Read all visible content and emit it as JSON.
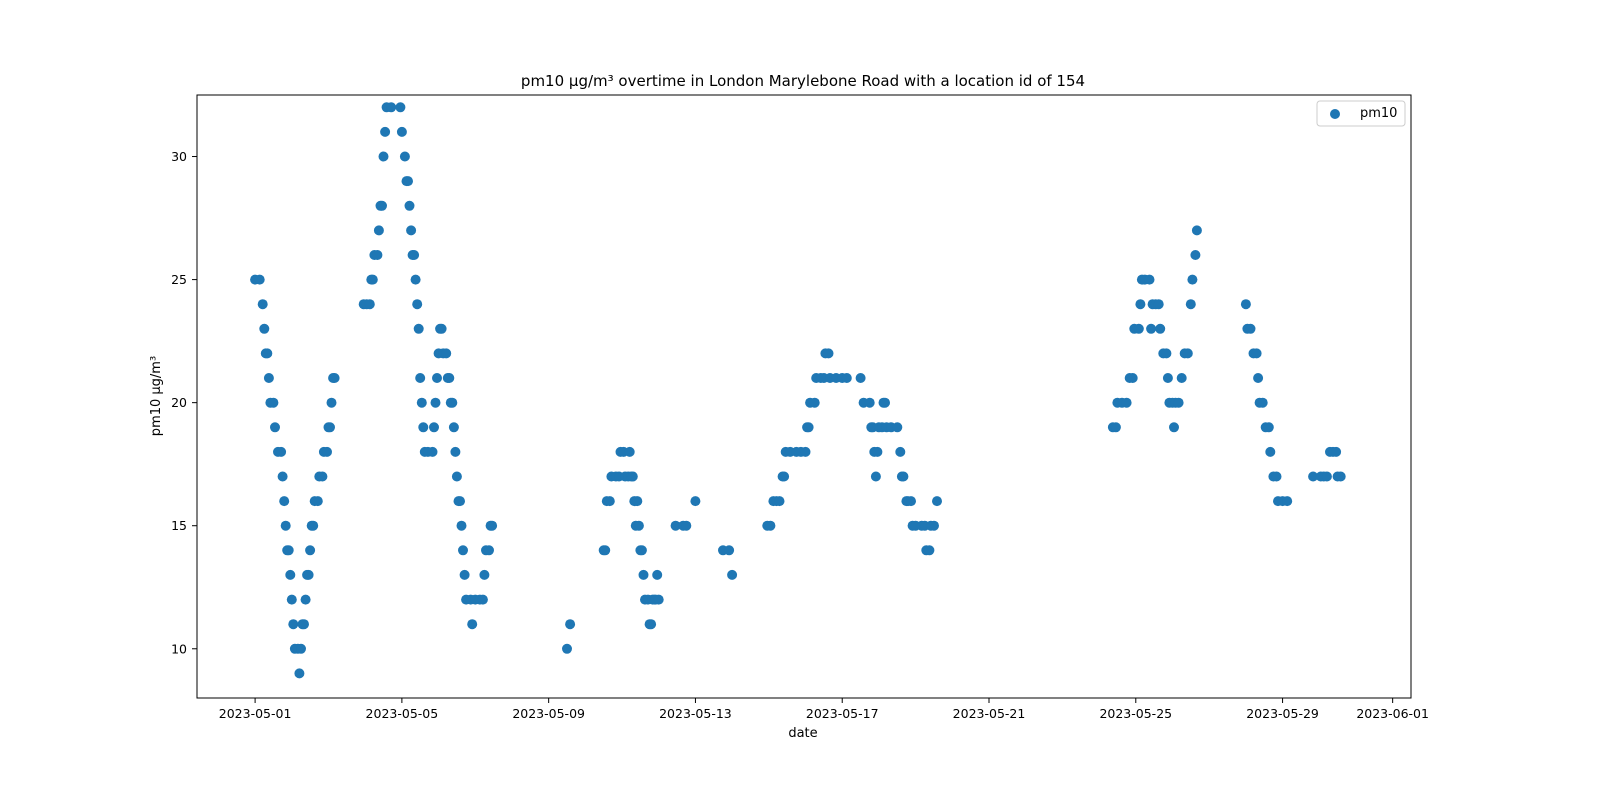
{
  "chart_data": {
    "type": "scatter",
    "title": "pm10 µg/m³ overtime in London Marylebone Road with a location id of 154",
    "xlabel": "date",
    "ylabel": "pm10 µg/m³",
    "x_ticks": [
      "2023-05-01",
      "2023-05-05",
      "2023-05-09",
      "2023-05-13",
      "2023-05-17",
      "2023-05-21",
      "2023-05-25",
      "2023-05-29",
      "2023-06-01"
    ],
    "y_ticks": [
      10,
      15,
      20,
      25,
      30
    ],
    "xlim": [
      "2023-04-29 10:00",
      "2023-06-01 12:00"
    ],
    "ylim": [
      8,
      32.5
    ],
    "grid": false,
    "legend_position": "top-right",
    "marker_color": "#1f77b4",
    "series": [
      {
        "name": "pm10",
        "points": [
          [
            "2023-05-01 00:00",
            25
          ],
          [
            "2023-05-01 03:00",
            25
          ],
          [
            "2023-05-01 05:00",
            24
          ],
          [
            "2023-05-01 06:00",
            23
          ],
          [
            "2023-05-01 07:00",
            22
          ],
          [
            "2023-05-01 08:00",
            22
          ],
          [
            "2023-05-01 09:00",
            21
          ],
          [
            "2023-05-01 10:00",
            20
          ],
          [
            "2023-05-01 12:00",
            20
          ],
          [
            "2023-05-01 13:00",
            19
          ],
          [
            "2023-05-01 15:00",
            18
          ],
          [
            "2023-05-01 17:00",
            18
          ],
          [
            "2023-05-01 18:00",
            17
          ],
          [
            "2023-05-01 19:00",
            16
          ],
          [
            "2023-05-01 20:00",
            15
          ],
          [
            "2023-05-01 21:00",
            14
          ],
          [
            "2023-05-01 22:00",
            14
          ],
          [
            "2023-05-01 23:00",
            13
          ],
          [
            "2023-05-02 00:00",
            12
          ],
          [
            "2023-05-02 01:00",
            11
          ],
          [
            "2023-05-02 02:00",
            10
          ],
          [
            "2023-05-02 04:00",
            10
          ],
          [
            "2023-05-02 05:00",
            9
          ],
          [
            "2023-05-02 06:00",
            10
          ],
          [
            "2023-05-02 07:00",
            11
          ],
          [
            "2023-05-02 08:00",
            11
          ],
          [
            "2023-05-02 09:00",
            12
          ],
          [
            "2023-05-02 10:00",
            13
          ],
          [
            "2023-05-02 11:00",
            13
          ],
          [
            "2023-05-02 12:00",
            14
          ],
          [
            "2023-05-02 13:00",
            15
          ],
          [
            "2023-05-02 14:00",
            15
          ],
          [
            "2023-05-02 15:00",
            16
          ],
          [
            "2023-05-02 17:00",
            16
          ],
          [
            "2023-05-02 18:00",
            17
          ],
          [
            "2023-05-02 20:00",
            17
          ],
          [
            "2023-05-02 21:00",
            18
          ],
          [
            "2023-05-02 23:00",
            18
          ],
          [
            "2023-05-03 00:00",
            19
          ],
          [
            "2023-05-03 01:00",
            19
          ],
          [
            "2023-05-03 02:00",
            20
          ],
          [
            "2023-05-03 03:00",
            21
          ],
          [
            "2023-05-03 04:00",
            21
          ],
          [
            "2023-05-03 23:00",
            24
          ],
          [
            "2023-05-04 01:00",
            24
          ],
          [
            "2023-05-04 03:00",
            24
          ],
          [
            "2023-05-04 04:00",
            25
          ],
          [
            "2023-05-04 05:00",
            25
          ],
          [
            "2023-05-04 06:00",
            26
          ],
          [
            "2023-05-04 08:00",
            26
          ],
          [
            "2023-05-04 09:00",
            27
          ],
          [
            "2023-05-04 10:00",
            28
          ],
          [
            "2023-05-04 11:00",
            28
          ],
          [
            "2023-05-04 12:00",
            30
          ],
          [
            "2023-05-04 13:00",
            31
          ],
          [
            "2023-05-04 14:00",
            32
          ],
          [
            "2023-05-04 17:00",
            32
          ],
          [
            "2023-05-04 23:00",
            32
          ],
          [
            "2023-05-05 00:00",
            31
          ],
          [
            "2023-05-05 02:00",
            30
          ],
          [
            "2023-05-05 03:00",
            29
          ],
          [
            "2023-05-05 04:00",
            29
          ],
          [
            "2023-05-05 05:00",
            28
          ],
          [
            "2023-05-05 06:00",
            27
          ],
          [
            "2023-05-05 07:00",
            26
          ],
          [
            "2023-05-05 08:00",
            26
          ],
          [
            "2023-05-05 09:00",
            25
          ],
          [
            "2023-05-05 10:00",
            24
          ],
          [
            "2023-05-05 11:00",
            23
          ],
          [
            "2023-05-05 12:00",
            21
          ],
          [
            "2023-05-05 13:00",
            20
          ],
          [
            "2023-05-05 14:00",
            19
          ],
          [
            "2023-05-05 15:00",
            18
          ],
          [
            "2023-05-05 17:00",
            18
          ],
          [
            "2023-05-05 20:00",
            18
          ],
          [
            "2023-05-05 21:00",
            19
          ],
          [
            "2023-05-05 22:00",
            20
          ],
          [
            "2023-05-05 23:00",
            21
          ],
          [
            "2023-05-06 00:00",
            22
          ],
          [
            "2023-05-06 01:00",
            23
          ],
          [
            "2023-05-06 02:00",
            23
          ],
          [
            "2023-05-06 03:00",
            22
          ],
          [
            "2023-05-06 05:00",
            22
          ],
          [
            "2023-05-06 06:00",
            21
          ],
          [
            "2023-05-06 07:00",
            21
          ],
          [
            "2023-05-06 08:00",
            20
          ],
          [
            "2023-05-06 09:00",
            20
          ],
          [
            "2023-05-06 10:00",
            19
          ],
          [
            "2023-05-06 11:00",
            18
          ],
          [
            "2023-05-06 12:00",
            17
          ],
          [
            "2023-05-06 13:00",
            16
          ],
          [
            "2023-05-06 14:00",
            16
          ],
          [
            "2023-05-06 15:00",
            15
          ],
          [
            "2023-05-06 16:00",
            14
          ],
          [
            "2023-05-06 17:00",
            13
          ],
          [
            "2023-05-06 18:00",
            12
          ],
          [
            "2023-05-06 21:00",
            12
          ],
          [
            "2023-05-06 22:00",
            11
          ],
          [
            "2023-05-07 00:00",
            12
          ],
          [
            "2023-05-07 03:00",
            12
          ],
          [
            "2023-05-07 05:00",
            12
          ],
          [
            "2023-05-07 06:00",
            13
          ],
          [
            "2023-05-07 07:00",
            14
          ],
          [
            "2023-05-07 09:00",
            14
          ],
          [
            "2023-05-07 10:00",
            15
          ],
          [
            "2023-05-07 11:00",
            15
          ],
          [
            "2023-05-09 12:00",
            10
          ],
          [
            "2023-05-09 14:00",
            11
          ],
          [
            "2023-05-10 12:00",
            14
          ],
          [
            "2023-05-10 13:00",
            14
          ],
          [
            "2023-05-10 14:00",
            16
          ],
          [
            "2023-05-10 16:00",
            16
          ],
          [
            "2023-05-10 17:00",
            17
          ],
          [
            "2023-05-10 20:00",
            17
          ],
          [
            "2023-05-10 22:00",
            17
          ],
          [
            "2023-05-10 23:00",
            18
          ],
          [
            "2023-05-11 01:00",
            18
          ],
          [
            "2023-05-11 02:00",
            17
          ],
          [
            "2023-05-11 04:00",
            17
          ],
          [
            "2023-05-11 05:00",
            18
          ],
          [
            "2023-05-11 06:00",
            17
          ],
          [
            "2023-05-11 07:00",
            17
          ],
          [
            "2023-05-11 08:00",
            16
          ],
          [
            "2023-05-11 09:00",
            15
          ],
          [
            "2023-05-11 10:00",
            16
          ],
          [
            "2023-05-11 11:00",
            15
          ],
          [
            "2023-05-11 12:00",
            14
          ],
          [
            "2023-05-11 13:00",
            14
          ],
          [
            "2023-05-11 14:00",
            13
          ],
          [
            "2023-05-11 15:00",
            12
          ],
          [
            "2023-05-11 17:00",
            12
          ],
          [
            "2023-05-11 18:00",
            11
          ],
          [
            "2023-05-11 19:00",
            11
          ],
          [
            "2023-05-11 20:00",
            12
          ],
          [
            "2023-05-11 21:00",
            12
          ],
          [
            "2023-05-11 22:00",
            12
          ],
          [
            "2023-05-11 23:00",
            13
          ],
          [
            "2023-05-12 00:00",
            12
          ],
          [
            "2023-05-12 11:00",
            15
          ],
          [
            "2023-05-12 16:00",
            15
          ],
          [
            "2023-05-12 18:00",
            15
          ],
          [
            "2023-05-13 00:00",
            16
          ],
          [
            "2023-05-13 18:00",
            14
          ],
          [
            "2023-05-13 22:00",
            14
          ],
          [
            "2023-05-14 00:00",
            13
          ],
          [
            "2023-05-14 23:00",
            15
          ],
          [
            "2023-05-15 01:00",
            15
          ],
          [
            "2023-05-15 03:00",
            16
          ],
          [
            "2023-05-15 05:00",
            16
          ],
          [
            "2023-05-15 07:00",
            16
          ],
          [
            "2023-05-15 09:00",
            17
          ],
          [
            "2023-05-15 10:00",
            17
          ],
          [
            "2023-05-15 11:00",
            18
          ],
          [
            "2023-05-15 14:00",
            18
          ],
          [
            "2023-05-15 18:00",
            18
          ],
          [
            "2023-05-15 21:00",
            18
          ],
          [
            "2023-05-16 00:00",
            18
          ],
          [
            "2023-05-16 01:00",
            19
          ],
          [
            "2023-05-16 02:00",
            19
          ],
          [
            "2023-05-16 03:00",
            20
          ],
          [
            "2023-05-16 06:00",
            20
          ],
          [
            "2023-05-16 07:00",
            21
          ],
          [
            "2023-05-16 10:00",
            21
          ],
          [
            "2023-05-16 12:00",
            21
          ],
          [
            "2023-05-16 13:00",
            22
          ],
          [
            "2023-05-16 15:00",
            22
          ],
          [
            "2023-05-16 16:00",
            21
          ],
          [
            "2023-05-16 20:00",
            21
          ],
          [
            "2023-05-17 00:00",
            21
          ],
          [
            "2023-05-17 03:00",
            21
          ],
          [
            "2023-05-17 12:00",
            21
          ],
          [
            "2023-05-17 14:00",
            20
          ],
          [
            "2023-05-17 18:00",
            20
          ],
          [
            "2023-05-17 19:00",
            19
          ],
          [
            "2023-05-17 20:00",
            19
          ],
          [
            "2023-05-17 21:00",
            18
          ],
          [
            "2023-05-17 22:00",
            17
          ],
          [
            "2023-05-17 23:00",
            18
          ],
          [
            "2023-05-18 00:00",
            19
          ],
          [
            "2023-05-18 02:00",
            19
          ],
          [
            "2023-05-18 03:00",
            20
          ],
          [
            "2023-05-18 04:00",
            20
          ],
          [
            "2023-05-18 05:00",
            19
          ],
          [
            "2023-05-18 08:00",
            19
          ],
          [
            "2023-05-18 12:00",
            19
          ],
          [
            "2023-05-18 14:00",
            18
          ],
          [
            "2023-05-18 15:00",
            17
          ],
          [
            "2023-05-18 16:00",
            17
          ],
          [
            "2023-05-18 18:00",
            16
          ],
          [
            "2023-05-18 19:00",
            16
          ],
          [
            "2023-05-18 21:00",
            16
          ],
          [
            "2023-05-18 22:00",
            15
          ],
          [
            "2023-05-19 00:00",
            15
          ],
          [
            "2023-05-19 04:00",
            15
          ],
          [
            "2023-05-19 06:00",
            15
          ],
          [
            "2023-05-19 07:00",
            14
          ],
          [
            "2023-05-19 09:00",
            14
          ],
          [
            "2023-05-19 10:00",
            15
          ],
          [
            "2023-05-19 12:00",
            15
          ],
          [
            "2023-05-19 14:00",
            16
          ],
          [
            "2023-05-24 09:00",
            19
          ],
          [
            "2023-05-24 11:00",
            19
          ],
          [
            "2023-05-24 12:00",
            20
          ],
          [
            "2023-05-24 15:00",
            20
          ],
          [
            "2023-05-24 18:00",
            20
          ],
          [
            "2023-05-24 20:00",
            21
          ],
          [
            "2023-05-24 22:00",
            21
          ],
          [
            "2023-05-24 23:00",
            23
          ],
          [
            "2023-05-25 02:00",
            23
          ],
          [
            "2023-05-25 03:00",
            24
          ],
          [
            "2023-05-25 04:00",
            25
          ],
          [
            "2023-05-25 06:00",
            25
          ],
          [
            "2023-05-25 09:00",
            25
          ],
          [
            "2023-05-25 10:00",
            23
          ],
          [
            "2023-05-25 11:00",
            24
          ],
          [
            "2023-05-25 13:00",
            24
          ],
          [
            "2023-05-25 15:00",
            24
          ],
          [
            "2023-05-25 16:00",
            23
          ],
          [
            "2023-05-25 18:00",
            22
          ],
          [
            "2023-05-25 20:00",
            22
          ],
          [
            "2023-05-25 21:00",
            21
          ],
          [
            "2023-05-25 22:00",
            20
          ],
          [
            "2023-05-26 00:00",
            20
          ],
          [
            "2023-05-26 01:00",
            19
          ],
          [
            "2023-05-26 02:00",
            20
          ],
          [
            "2023-05-26 04:00",
            20
          ],
          [
            "2023-05-26 06:00",
            21
          ],
          [
            "2023-05-26 08:00",
            22
          ],
          [
            "2023-05-26 10:00",
            22
          ],
          [
            "2023-05-26 12:00",
            24
          ],
          [
            "2023-05-26 13:00",
            25
          ],
          [
            "2023-05-26 15:00",
            26
          ],
          [
            "2023-05-26 16:00",
            27
          ],
          [
            "2023-05-28 00:00",
            24
          ],
          [
            "2023-05-28 01:00",
            23
          ],
          [
            "2023-05-28 03:00",
            23
          ],
          [
            "2023-05-28 05:00",
            22
          ],
          [
            "2023-05-28 07:00",
            22
          ],
          [
            "2023-05-28 08:00",
            21
          ],
          [
            "2023-05-28 09:00",
            20
          ],
          [
            "2023-05-28 11:00",
            20
          ],
          [
            "2023-05-28 13:00",
            19
          ],
          [
            "2023-05-28 15:00",
            19
          ],
          [
            "2023-05-28 16:00",
            18
          ],
          [
            "2023-05-28 18:00",
            17
          ],
          [
            "2023-05-28 20:00",
            17
          ],
          [
            "2023-05-28 21:00",
            16
          ],
          [
            "2023-05-29 00:00",
            16
          ],
          [
            "2023-05-29 03:00",
            16
          ],
          [
            "2023-05-29 20:00",
            17
          ],
          [
            "2023-05-30 01:00",
            17
          ],
          [
            "2023-05-30 03:00",
            17
          ],
          [
            "2023-05-30 05:00",
            17
          ],
          [
            "2023-05-30 07:00",
            18
          ],
          [
            "2023-05-30 09:00",
            18
          ],
          [
            "2023-05-30 11:00",
            18
          ],
          [
            "2023-05-30 12:00",
            17
          ],
          [
            "2023-05-30 14:00",
            17
          ]
        ]
      }
    ]
  }
}
